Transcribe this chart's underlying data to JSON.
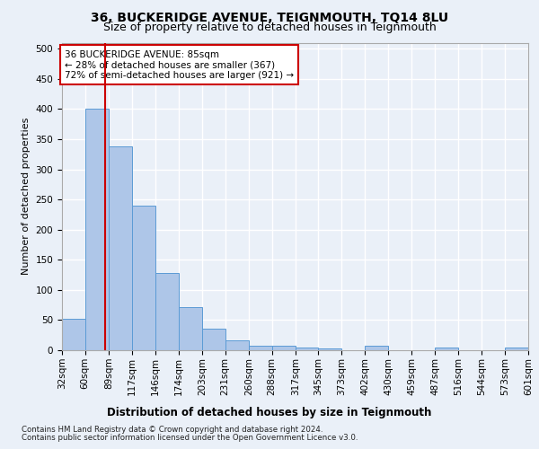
{
  "title1": "36, BUCKERIDGE AVENUE, TEIGNMOUTH, TQ14 8LU",
  "title2": "Size of property relative to detached houses in Teignmouth",
  "xlabel": "Distribution of detached houses by size in Teignmouth",
  "ylabel": "Number of detached properties",
  "footer1": "Contains HM Land Registry data © Crown copyright and database right 2024.",
  "footer2": "Contains public sector information licensed under the Open Government Licence v3.0.",
  "annotation_line1": "36 BUCKERIDGE AVENUE: 85sqm",
  "annotation_line2": "← 28% of detached houses are smaller (367)",
  "annotation_line3": "72% of semi-detached houses are larger (921) →",
  "bar_color": "#aec6e8",
  "bar_edge_color": "#5b9bd5",
  "vline_color": "#cc0000",
  "vline_x": 85,
  "bins": [
    32,
    60,
    89,
    117,
    146,
    174,
    203,
    231,
    260,
    288,
    317,
    345,
    373,
    402,
    430,
    459,
    487,
    516,
    544,
    573,
    601
  ],
  "counts": [
    52,
    400,
    338,
    240,
    128,
    72,
    35,
    17,
    8,
    7,
    5,
    3,
    0,
    7,
    0,
    0,
    5,
    0,
    0,
    5
  ],
  "ylim": [
    0,
    510
  ],
  "yticks": [
    0,
    50,
    100,
    150,
    200,
    250,
    300,
    350,
    400,
    450,
    500
  ],
  "bg_color": "#eaf0f8",
  "plot_bg_color": "#eaf0f8",
  "grid_color": "#ffffff",
  "title1_fontsize": 10,
  "title2_fontsize": 9,
  "xlabel_fontsize": 8.5,
  "ylabel_fontsize": 8,
  "tick_fontsize": 7.5,
  "annotation_fontsize": 7.5,
  "annotation_box_edge_color": "#cc0000",
  "annotation_box_face_color": "#ffffff"
}
